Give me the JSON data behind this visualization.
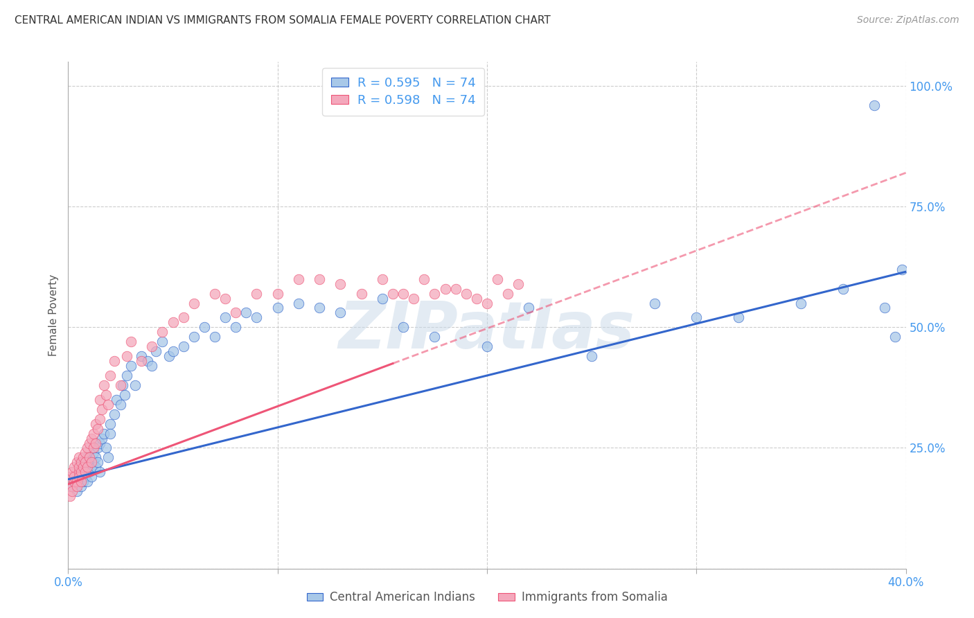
{
  "title": "CENTRAL AMERICAN INDIAN VS IMMIGRANTS FROM SOMALIA FEMALE POVERTY CORRELATION CHART",
  "source_text": "Source: ZipAtlas.com",
  "ylabel": "Female Poverty",
  "xlim": [
    0.0,
    0.4
  ],
  "ylim": [
    0.0,
    1.05
  ],
  "xticks": [
    0.0,
    0.1,
    0.2,
    0.3,
    0.4
  ],
  "xticklabels": [
    "0.0%",
    "",
    "",
    "",
    "40.0%"
  ],
  "yticks": [
    0.0,
    0.25,
    0.5,
    0.75,
    1.0
  ],
  "right_yticklabels": [
    "",
    "25.0%",
    "50.0%",
    "75.0%",
    "100.0%"
  ],
  "legend_labels": [
    "Central American Indians",
    "Immigrants from Somalia"
  ],
  "scatter_color_1": "#A8C8E8",
  "scatter_color_2": "#F4A8BC",
  "line_color_1": "#3366CC",
  "line_color_2": "#EE5577",
  "watermark_text": "ZIPatlas",
  "background_color": "#ffffff",
  "title_fontsize": 11,
  "axis_tick_color": "#4499EE",
  "n1": 74,
  "n2": 74,
  "R1": 0.595,
  "R2": 0.598,
  "line1_x0": 0.0,
  "line1_y0": 0.185,
  "line1_x1": 0.4,
  "line1_y1": 0.615,
  "line2_x0": 0.0,
  "line2_y0": 0.175,
  "line2_x1": 0.4,
  "line2_y1": 0.82,
  "line2_solid_end": 0.155,
  "scatter1_x": [
    0.002,
    0.003,
    0.004,
    0.005,
    0.005,
    0.006,
    0.006,
    0.007,
    0.007,
    0.008,
    0.008,
    0.009,
    0.009,
    0.009,
    0.01,
    0.01,
    0.011,
    0.011,
    0.012,
    0.012,
    0.013,
    0.013,
    0.014,
    0.014,
    0.015,
    0.015,
    0.016,
    0.017,
    0.018,
    0.019,
    0.02,
    0.02,
    0.022,
    0.023,
    0.025,
    0.026,
    0.027,
    0.028,
    0.03,
    0.032,
    0.035,
    0.038,
    0.04,
    0.042,
    0.045,
    0.048,
    0.05,
    0.055,
    0.06,
    0.065,
    0.07,
    0.075,
    0.08,
    0.085,
    0.09,
    0.1,
    0.11,
    0.12,
    0.13,
    0.15,
    0.16,
    0.175,
    0.2,
    0.22,
    0.25,
    0.28,
    0.3,
    0.32,
    0.35,
    0.37,
    0.385,
    0.39,
    0.395,
    0.398
  ],
  "scatter1_y": [
    0.17,
    0.18,
    0.16,
    0.19,
    0.2,
    0.17,
    0.22,
    0.18,
    0.21,
    0.2,
    0.19,
    0.21,
    0.18,
    0.23,
    0.22,
    0.2,
    0.21,
    0.19,
    0.22,
    0.24,
    0.23,
    0.21,
    0.22,
    0.25,
    0.2,
    0.26,
    0.27,
    0.28,
    0.25,
    0.23,
    0.3,
    0.28,
    0.32,
    0.35,
    0.34,
    0.38,
    0.36,
    0.4,
    0.42,
    0.38,
    0.44,
    0.43,
    0.42,
    0.45,
    0.47,
    0.44,
    0.45,
    0.46,
    0.48,
    0.5,
    0.48,
    0.52,
    0.5,
    0.53,
    0.52,
    0.54,
    0.55,
    0.54,
    0.53,
    0.56,
    0.5,
    0.48,
    0.46,
    0.54,
    0.44,
    0.55,
    0.52,
    0.52,
    0.55,
    0.58,
    0.96,
    0.54,
    0.48,
    0.62
  ],
  "scatter2_x": [
    0.001,
    0.001,
    0.002,
    0.002,
    0.002,
    0.003,
    0.003,
    0.003,
    0.004,
    0.004,
    0.004,
    0.005,
    0.005,
    0.005,
    0.005,
    0.006,
    0.006,
    0.006,
    0.007,
    0.007,
    0.008,
    0.008,
    0.008,
    0.009,
    0.009,
    0.01,
    0.01,
    0.011,
    0.011,
    0.012,
    0.012,
    0.013,
    0.013,
    0.014,
    0.015,
    0.015,
    0.016,
    0.017,
    0.018,
    0.019,
    0.02,
    0.022,
    0.025,
    0.028,
    0.03,
    0.035,
    0.04,
    0.045,
    0.05,
    0.055,
    0.06,
    0.07,
    0.075,
    0.08,
    0.09,
    0.1,
    0.11,
    0.12,
    0.13,
    0.14,
    0.15,
    0.155,
    0.16,
    0.165,
    0.17,
    0.175,
    0.18,
    0.185,
    0.19,
    0.195,
    0.2,
    0.205,
    0.21,
    0.215
  ],
  "scatter2_y": [
    0.15,
    0.19,
    0.17,
    0.2,
    0.16,
    0.18,
    0.21,
    0.19,
    0.18,
    0.22,
    0.17,
    0.2,
    0.21,
    0.19,
    0.23,
    0.2,
    0.22,
    0.18,
    0.21,
    0.23,
    0.22,
    0.2,
    0.24,
    0.21,
    0.25,
    0.23,
    0.26,
    0.22,
    0.27,
    0.25,
    0.28,
    0.26,
    0.3,
    0.29,
    0.31,
    0.35,
    0.33,
    0.38,
    0.36,
    0.34,
    0.4,
    0.43,
    0.38,
    0.44,
    0.47,
    0.43,
    0.46,
    0.49,
    0.51,
    0.52,
    0.55,
    0.57,
    0.56,
    0.53,
    0.57,
    0.57,
    0.6,
    0.6,
    0.59,
    0.57,
    0.6,
    0.57,
    0.57,
    0.56,
    0.6,
    0.57,
    0.58,
    0.58,
    0.57,
    0.56,
    0.55,
    0.6,
    0.57,
    0.59
  ]
}
